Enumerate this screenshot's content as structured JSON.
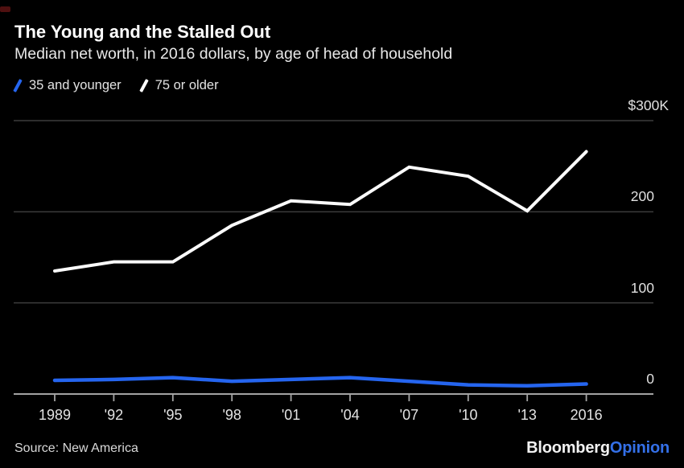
{
  "header": {
    "title": "The Young and the Stalled Out",
    "subtitle": "Median net worth, in 2016 dollars, by age of head of household"
  },
  "chart_data": {
    "type": "line",
    "x_categories": [
      "1989",
      "'92",
      "'95",
      "'98",
      "'01",
      "'04",
      "'07",
      "'10",
      "'13",
      "2016"
    ],
    "series": [
      {
        "name": "35 and younger",
        "color": "#2565ef",
        "values": [
          15,
          16,
          18,
          14,
          16,
          18,
          14,
          10,
          9,
          11
        ]
      },
      {
        "name": "75 or older",
        "color": "#fbfbfb",
        "values": [
          135,
          145,
          145,
          185,
          212,
          208,
          249,
          239,
          201,
          266
        ]
      }
    ],
    "y_axis": {
      "min": 0,
      "max": 300,
      "unit": "thousands of 2016 dollars",
      "ticks": [
        {
          "label": "$300K",
          "value": 300
        },
        {
          "label": "200",
          "value": 200
        },
        {
          "label": "100",
          "value": 100
        },
        {
          "label": "0",
          "value": 0
        }
      ]
    },
    "grid": "horizontal",
    "legend_position": "top-left",
    "title": "The Young and the Stalled Out",
    "xlabel": "",
    "ylabel": ""
  },
  "colors": {
    "background": "#000000",
    "gridline": "#3c3c3c",
    "axis": "#a3a3a3",
    "accent_blue": "#2565ef"
  },
  "footer": {
    "source": "Source: New America",
    "logo_primary": "Bloomberg",
    "logo_secondary": "Opinion"
  }
}
